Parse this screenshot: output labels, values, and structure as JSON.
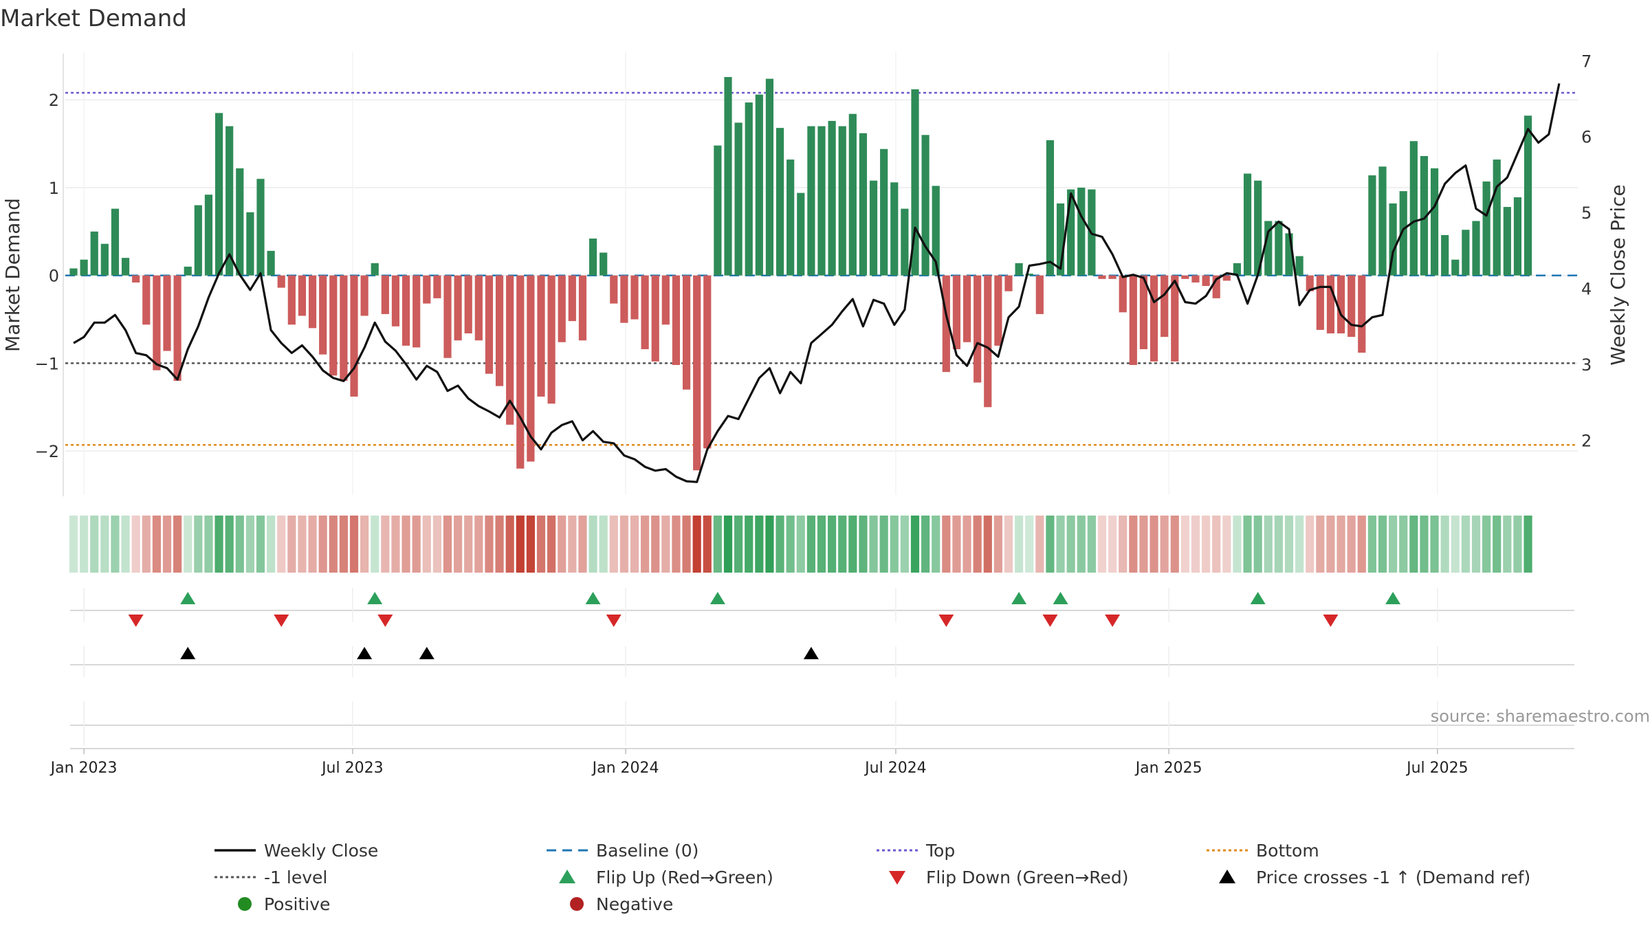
{
  "chart_data": {
    "type": "bar",
    "title": "Market Demand",
    "ylabel": "Market Demand",
    "y2label": "Weekly Close Price",
    "ylim": [
      -2.5,
      2.55
    ],
    "y2lim": [
      1.28,
      7.12
    ],
    "yticks": [
      2,
      1,
      0,
      -1,
      -2
    ],
    "yticklabels": [
      "2",
      "1",
      "0",
      "−1",
      "−2"
    ],
    "y2ticks": [
      7,
      6,
      5,
      4,
      3,
      2
    ],
    "start_date": "2022-12-25",
    "week_count": 145,
    "xticks": [
      {
        "label": "Jan 2023",
        "date": "2023-01-01"
      },
      {
        "label": "Jul 2023",
        "date": "2023-07-01"
      },
      {
        "label": "Jan 2024",
        "date": "2024-01-01"
      },
      {
        "label": "Jul 2024",
        "date": "2024-07-01"
      },
      {
        "label": "Jan 2025",
        "date": "2025-01-01"
      },
      {
        "label": "Jul 2025",
        "date": "2025-07-01"
      }
    ],
    "reference_lines": {
      "top": 2.08,
      "level_minus_1": -1.0,
      "bottom": -1.93,
      "baseline": 0
    },
    "series": [
      {
        "name": "Market Demand",
        "values": [
          0.08,
          0.18,
          0.5,
          0.36,
          0.76,
          0.2,
          -0.08,
          -0.56,
          -1.08,
          -0.86,
          -1.2,
          0.1,
          0.8,
          0.92,
          1.85,
          1.7,
          1.22,
          0.72,
          1.1,
          0.28,
          -0.14,
          -0.56,
          -0.46,
          -0.6,
          -0.9,
          -1.14,
          -1.2,
          -1.38,
          -0.46,
          0.14,
          -0.44,
          -0.58,
          -0.8,
          -0.82,
          -0.32,
          -0.26,
          -0.94,
          -0.74,
          -0.66,
          -0.74,
          -1.12,
          -1.26,
          -1.7,
          -2.2,
          -2.12,
          -1.38,
          -1.46,
          -0.76,
          -0.52,
          -0.74,
          0.42,
          0.26,
          -0.32,
          -0.54,
          -0.5,
          -0.84,
          -0.98,
          -0.56,
          -1.02,
          -1.3,
          -2.22,
          -1.97,
          1.48,
          2.26,
          1.74,
          1.97,
          2.06,
          2.24,
          1.68,
          1.32,
          0.94,
          1.7,
          1.7,
          1.76,
          1.7,
          1.84,
          1.62,
          1.08,
          1.44,
          1.06,
          0.76,
          2.12,
          1.6,
          1.02,
          -1.1,
          -0.84,
          -0.76,
          -1.22,
          -1.5,
          -0.8,
          -0.18,
          0.14,
          0.02,
          -0.44,
          1.54,
          0.82,
          0.98,
          1.0,
          0.98,
          -0.04,
          -0.04,
          -0.42,
          -1.02,
          -0.84,
          -0.98,
          -0.7,
          -0.98,
          -0.04,
          -0.08,
          -0.12,
          -0.26,
          -0.06,
          0.14,
          1.16,
          1.08,
          0.62,
          0.62,
          0.48,
          0.22,
          -0.18,
          -0.62,
          -0.66,
          -0.66,
          -0.7,
          -0.88,
          1.14,
          1.24,
          0.82,
          0.96,
          1.53,
          1.36,
          1.22,
          0.46,
          0.18,
          0.52,
          0.62,
          1.07,
          1.32,
          0.78,
          0.89,
          1.82
        ]
      },
      {
        "name": "Weekly Close",
        "values": [
          3.28,
          3.36,
          3.55,
          3.55,
          3.65,
          3.45,
          3.15,
          3.12,
          3.0,
          2.95,
          2.8,
          3.2,
          3.5,
          3.88,
          4.2,
          4.45,
          4.18,
          3.98,
          4.2,
          3.45,
          3.28,
          3.15,
          3.25,
          3.1,
          2.92,
          2.82,
          2.78,
          2.95,
          3.22,
          3.55,
          3.3,
          3.18,
          3.0,
          2.8,
          2.98,
          2.9,
          2.65,
          2.72,
          2.55,
          2.45,
          2.38,
          2.3,
          2.52,
          2.3,
          2.05,
          1.88,
          2.1,
          2.2,
          2.25,
          2.0,
          2.12,
          1.98,
          1.96,
          1.8,
          1.75,
          1.65,
          1.6,
          1.62,
          1.52,
          1.46,
          1.45,
          1.88,
          2.12,
          2.32,
          2.28,
          2.55,
          2.82,
          2.95,
          2.62,
          2.9,
          2.75,
          3.28,
          3.4,
          3.52,
          3.7,
          3.86,
          3.5,
          3.85,
          3.8,
          3.52,
          3.72,
          4.8,
          4.55,
          4.35,
          3.65,
          3.12,
          2.98,
          3.28,
          3.22,
          3.1,
          3.62,
          3.76,
          4.3,
          4.32,
          4.35,
          4.26,
          5.25,
          4.95,
          4.72,
          4.68,
          4.45,
          4.15,
          4.18,
          4.14,
          3.82,
          3.92,
          4.1,
          3.82,
          3.8,
          3.9,
          4.12,
          4.2,
          4.18,
          3.8,
          4.18,
          4.75,
          4.88,
          4.78,
          3.78,
          3.98,
          4.02,
          4.02,
          3.65,
          3.52,
          3.5,
          3.62,
          3.65,
          4.48,
          4.78,
          4.88,
          4.92,
          5.08,
          5.38,
          5.52,
          5.62,
          5.05,
          4.96,
          5.34,
          5.46,
          5.78,
          6.1,
          5.92,
          6.03,
          6.7
        ]
      }
    ],
    "flip_up_weeks": [
      11,
      29,
      50,
      62,
      91,
      95,
      114,
      127
    ],
    "flip_down_weeks": [
      6,
      20,
      30,
      52,
      84,
      94,
      100,
      121
    ],
    "price_cross_weeks": [
      11,
      28,
      34,
      71
    ],
    "legend": {
      "placement": "bottom",
      "items": [
        {
          "label": "Weekly Close",
          "symbol": "line",
          "color": "#111111"
        },
        {
          "label": "Baseline (0)",
          "symbol": "dash",
          "color": "#1f77b4"
        },
        {
          "label": "Top",
          "symbol": "dot",
          "color": "#6a5acd"
        },
        {
          "label": "Bottom",
          "symbol": "dot",
          "color": "#e08a1e"
        },
        {
          "label": "-1 level",
          "symbol": "dot",
          "color": "#555555"
        },
        {
          "label": "Flip Up (Red→Green)",
          "symbol": "triangle-up",
          "color": "#2ca05a"
        },
        {
          "label": "Flip Down (Green→Red)",
          "symbol": "triangle-down",
          "color": "#d62728"
        },
        {
          "label": "Price crosses -1 ↑ (Demand ref)",
          "symbol": "triangle-up",
          "color": "#000000"
        },
        {
          "label": "Positive",
          "symbol": "circle",
          "color": "#228b22"
        },
        {
          "label": "Negative",
          "symbol": "circle",
          "color": "#b22222"
        }
      ]
    },
    "colors": {
      "positive": "#2e8b57",
      "negative": "#cd5c5c",
      "heat_positive": "#2e9e55",
      "heat_negative": "#c0392b",
      "close_line": "#111111"
    },
    "source": "source: sharemaestro.com"
  }
}
